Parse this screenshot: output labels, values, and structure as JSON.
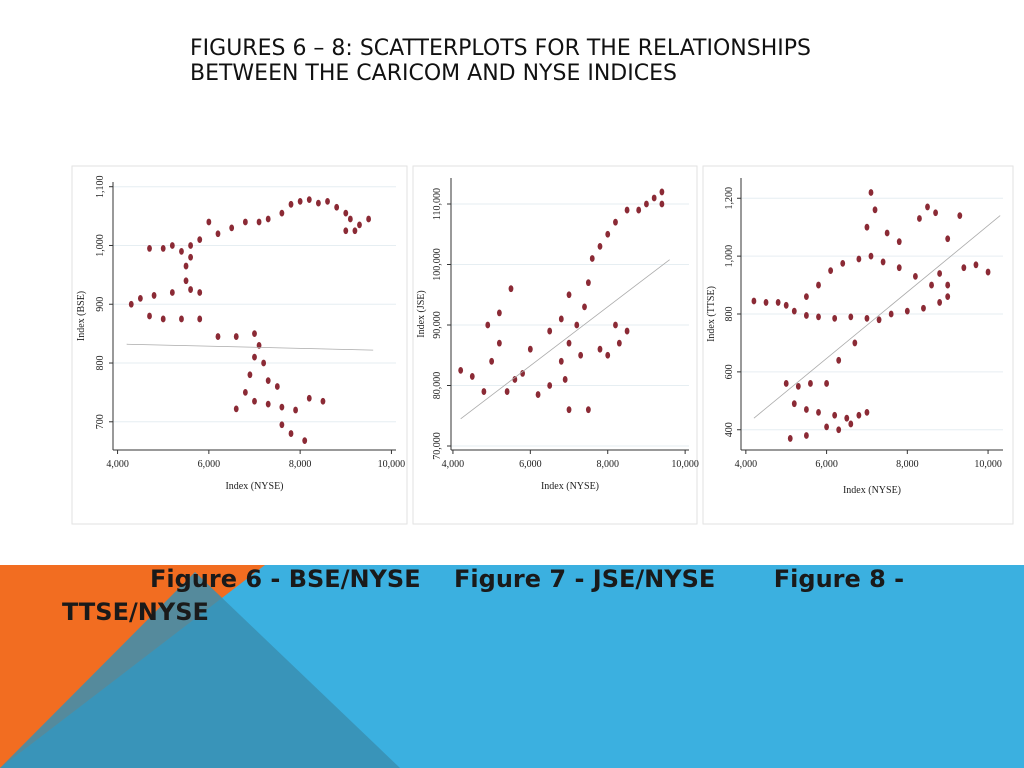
{
  "slide": {
    "title": "FIGURES 6 – 8: SCATTERPLOTS FOR THE RELATIONSHIPS BETWEEN THE CARICOM AND NYSE INDICES",
    "caption": "Figure 6 - BSE/NYSE    Figure 7 - JSE/NYSE       Figure 8 - TTSE/NYSE"
  },
  "chart_data": [
    {
      "type": "scatter",
      "x_label": "Index (NYSE)",
      "y_label": "Index (BSE)",
      "color": "#8b2a35",
      "fit_color": "#aaaaaa",
      "grid": true,
      "xlim": [
        3900,
        10100
      ],
      "ylim": [
        652,
        1108
      ],
      "xticks": [
        {
          "value": 4000,
          "label": "4,000"
        },
        {
          "value": 6000,
          "label": "6,000"
        },
        {
          "value": 8000,
          "label": "8,000"
        },
        {
          "value": 10000,
          "label": "10,000"
        }
      ],
      "yticks": [
        700,
        800,
        900,
        {
          "value": 1000,
          "label": "1,000"
        },
        {
          "value": 1100,
          "label": "1,100"
        }
      ],
      "x": [
        7800,
        8000,
        8200,
        8400,
        8600,
        8800,
        9000,
        9100,
        9300,
        9500,
        9200,
        9000,
        7600,
        7300,
        7100,
        6800,
        6500,
        6000,
        6200,
        5800,
        5600,
        5400,
        5200,
        5000,
        4700,
        5600,
        5500,
        4300,
        4500,
        4800,
        5200,
        5600,
        5800,
        5500,
        4700,
        5000,
        5400,
        5800,
        6200,
        6600,
        7000,
        7100,
        7000,
        7200,
        6900,
        7300,
        7500,
        6800,
        7000,
        7300,
        7600,
        6600,
        8200,
        8500,
        7900,
        7600,
        7800,
        8100
      ],
      "values": [
        1070,
        1075,
        1078,
        1072,
        1075,
        1065,
        1055,
        1045,
        1035,
        1045,
        1025,
        1025,
        1055,
        1045,
        1040,
        1040,
        1030,
        1040,
        1020,
        1010,
        1000,
        990,
        1000,
        995,
        995,
        980,
        965,
        900,
        910,
        915,
        920,
        925,
        920,
        940,
        880,
        875,
        875,
        875,
        845,
        845,
        850,
        830,
        810,
        800,
        780,
        770,
        760,
        750,
        735,
        730,
        725,
        722,
        740,
        735,
        720,
        695,
        680,
        668
      ],
      "fit": {
        "x": [
          4200,
          9600
        ],
        "values": [
          832,
          822
        ]
      }
    },
    {
      "type": "scatter",
      "x_label": "Index (NYSE)",
      "y_label": "Index (JSE)",
      "color": "#8b2a35",
      "fit_color": "#aaaaaa",
      "grid": true,
      "xlim": [
        3950,
        10100
      ],
      "ylim": [
        69340,
        114300
      ],
      "xticks": [
        {
          "value": 4000,
          "label": "4,000"
        },
        {
          "value": 6000,
          "label": "6,000"
        },
        {
          "value": 8000,
          "label": "8,000"
        },
        {
          "value": 10000,
          "label": "10,000"
        }
      ],
      "yticks": [
        {
          "value": 70000,
          "label": "70,000"
        },
        {
          "value": 80000,
          "label": "80,000"
        },
        {
          "value": 90000,
          "label": "90,000"
        },
        {
          "value": 100000,
          "label": "100,000"
        },
        {
          "value": 110000,
          "label": "110,000"
        }
      ],
      "x": [
        4200,
        4500,
        4800,
        5000,
        5200,
        5400,
        5600,
        5800,
        5500,
        5200,
        4900,
        6000,
        6200,
        6500,
        6800,
        7000,
        7200,
        7400,
        7000,
        7500,
        6800,
        6500,
        7000,
        7500,
        6900,
        7300,
        7800,
        8000,
        8300,
        8500,
        8200,
        7800,
        8000,
        8200,
        8500,
        8800,
        9000,
        9200,
        9400,
        9400,
        7600
      ],
      "values": [
        82500,
        81500,
        79000,
        84000,
        87000,
        79000,
        81000,
        82000,
        96000,
        92000,
        90000,
        86000,
        78500,
        80000,
        84000,
        87000,
        90000,
        93000,
        95000,
        97000,
        91000,
        89000,
        76000,
        76000,
        81000,
        85000,
        86000,
        85000,
        87000,
        89000,
        90000,
        103000,
        105000,
        107000,
        109000,
        109000,
        110000,
        111000,
        112000,
        110000,
        101000
      ],
      "fit": {
        "x": [
          4200,
          9600
        ],
        "values": [
          74500,
          100800
        ]
      }
    },
    {
      "type": "scatter",
      "x_label": "Index (NYSE)",
      "y_label": "Index (TTSE)",
      "color": "#8b2a35",
      "fit_color": "#aaaaaa",
      "grid": true,
      "xlim": [
        3880,
        10370
      ],
      "ylim": [
        330,
        1270
      ],
      "xticks": [
        {
          "value": 4000,
          "label": "4,000"
        },
        {
          "value": 6000,
          "label": "6,000"
        },
        {
          "value": 8000,
          "label": "8,000"
        },
        {
          "value": 10000,
          "label": "10,000"
        }
      ],
      "yticks": [
        400,
        600,
        800,
        {
          "value": 1000,
          "label": "1,000"
        },
        {
          "value": 1200,
          "label": "1,200"
        }
      ],
      "x": [
        4200,
        4500,
        4800,
        5000,
        5200,
        5500,
        5800,
        6200,
        6600,
        7000,
        7300,
        7600,
        8000,
        8400,
        8800,
        9000,
        8600,
        8200,
        7800,
        7400,
        7100,
        6800,
        6400,
        6100,
        5800,
        5500,
        7000,
        7100,
        7200,
        7500,
        7800,
        8300,
        8500,
        8700,
        9300,
        9000,
        9400,
        9700,
        10000,
        9000,
        8800,
        5000,
        5300,
        5600,
        5200,
        5500,
        5800,
        6200,
        6500,
        6800,
        7000,
        6600,
        6300,
        6000,
        5500,
        5100,
        6000,
        6300,
        6700
      ],
      "values": [
        845,
        840,
        840,
        830,
        810,
        795,
        790,
        785,
        790,
        785,
        780,
        800,
        810,
        820,
        840,
        860,
        900,
        930,
        960,
        980,
        1000,
        990,
        975,
        950,
        900,
        860,
        1100,
        1220,
        1160,
        1080,
        1050,
        1130,
        1170,
        1150,
        1140,
        1060,
        960,
        970,
        945,
        900,
        940,
        560,
        550,
        560,
        490,
        470,
        460,
        450,
        440,
        450,
        460,
        420,
        400,
        410,
        380,
        370,
        560,
        640,
        700
      ],
      "fit": {
        "x": [
          4200,
          10300
        ],
        "values": [
          440,
          1140
        ]
      }
    }
  ]
}
